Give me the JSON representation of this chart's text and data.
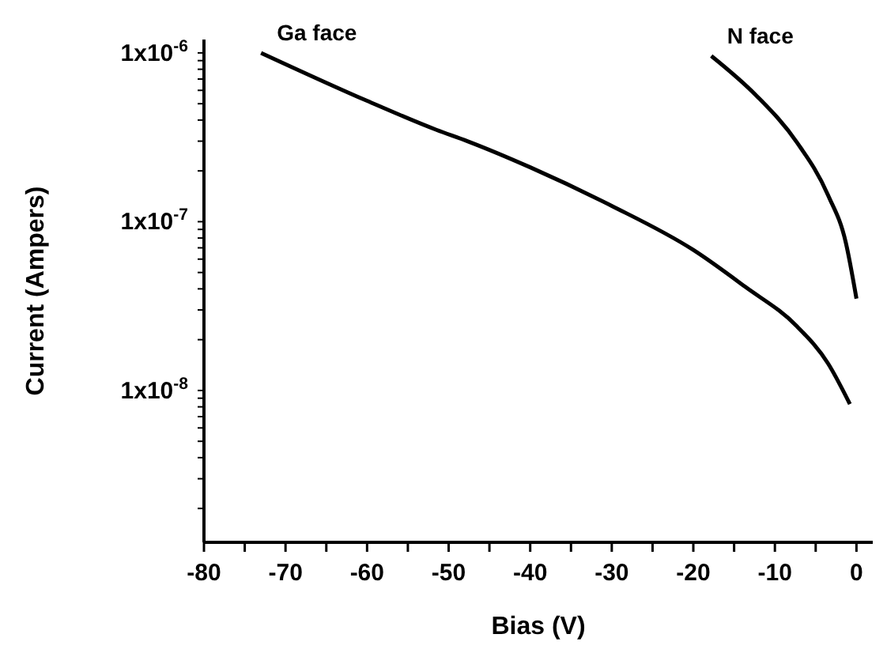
{
  "chart_data": {
    "type": "line",
    "xlabel": "Bias (V)",
    "ylabel": "Current (Ampers)",
    "log": "y",
    "marker": "none",
    "line_style": "solid",
    "xlim": [
      -80,
      2
    ],
    "xticks": [
      -80,
      {
        "value": -75,
        "label": null
      },
      -70,
      {
        "value": -65,
        "label": null
      },
      -60,
      {
        "value": -55,
        "label": null
      },
      -50,
      {
        "value": -45,
        "label": null
      },
      -40,
      {
        "value": -35,
        "label": null
      },
      -30,
      {
        "value": -25,
        "label": null
      },
      -20,
      {
        "value": -15,
        "label": null
      },
      -10,
      {
        "value": -5,
        "label": null
      },
      0
    ],
    "ylim": [
      1.26e-09,
      1.2e-06
    ],
    "yticks": [
      {
        "value": 2e-09,
        "label": null
      },
      {
        "value": 3e-09,
        "label": null
      },
      {
        "value": 4e-09,
        "label": null
      },
      {
        "value": 5e-09,
        "label": null
      },
      {
        "value": 6e-09,
        "label": null
      },
      {
        "value": 7e-09,
        "label": null
      },
      {
        "value": 8e-09,
        "label": null
      },
      {
        "value": 9e-09,
        "label": null
      },
      {
        "value": 1e-08,
        "label": "1x10$^{-8}$"
      },
      {
        "value": 2e-08,
        "label": null
      },
      {
        "value": 3e-08,
        "label": null
      },
      {
        "value": 4e-08,
        "label": null
      },
      {
        "value": 5e-08,
        "label": null
      },
      {
        "value": 6e-08,
        "label": null
      },
      {
        "value": 7e-08,
        "label": null
      },
      {
        "value": 8e-08,
        "label": null
      },
      {
        "value": 9e-08,
        "label": null
      },
      {
        "value": 1e-07,
        "label": "1x10$^{-7}$"
      },
      {
        "value": 2e-07,
        "label": null
      },
      {
        "value": 3e-07,
        "label": null
      },
      {
        "value": 4e-07,
        "label": null
      },
      {
        "value": 5e-07,
        "label": null
      },
      {
        "value": 6e-07,
        "label": null
      },
      {
        "value": 7e-07,
        "label": null
      },
      {
        "value": 8e-07,
        "label": null
      },
      {
        "value": 9e-07,
        "label": null
      },
      {
        "value": 1e-06,
        "label": "1x10$^{-6}$"
      }
    ],
    "series": [
      {
        "name": "Ga face",
        "color": "#000000",
        "x": [
          -73,
          -60,
          -51.5,
          -47.7,
          -40,
          -30,
          -20,
          -13.6,
          -7.3,
          -3.5,
          -0.8
        ],
        "values": [
          1e-06,
          5.2e-07,
          3.5e-07,
          3e-07,
          2.1e-07,
          1.24e-07,
          6.8e-08,
          4.1e-08,
          2.4e-08,
          1.45e-08,
          8.3e-09
        ]
      },
      {
        "name": "N face",
        "color": "#000000",
        "x": [
          -17.8,
          -12.3,
          -7.3,
          -3.5,
          -1.3,
          0
        ],
        "values": [
          9.6e-07,
          5.6e-07,
          2.95e-07,
          1.44e-07,
          7.5e-08,
          3.5e-08
        ]
      }
    ]
  }
}
